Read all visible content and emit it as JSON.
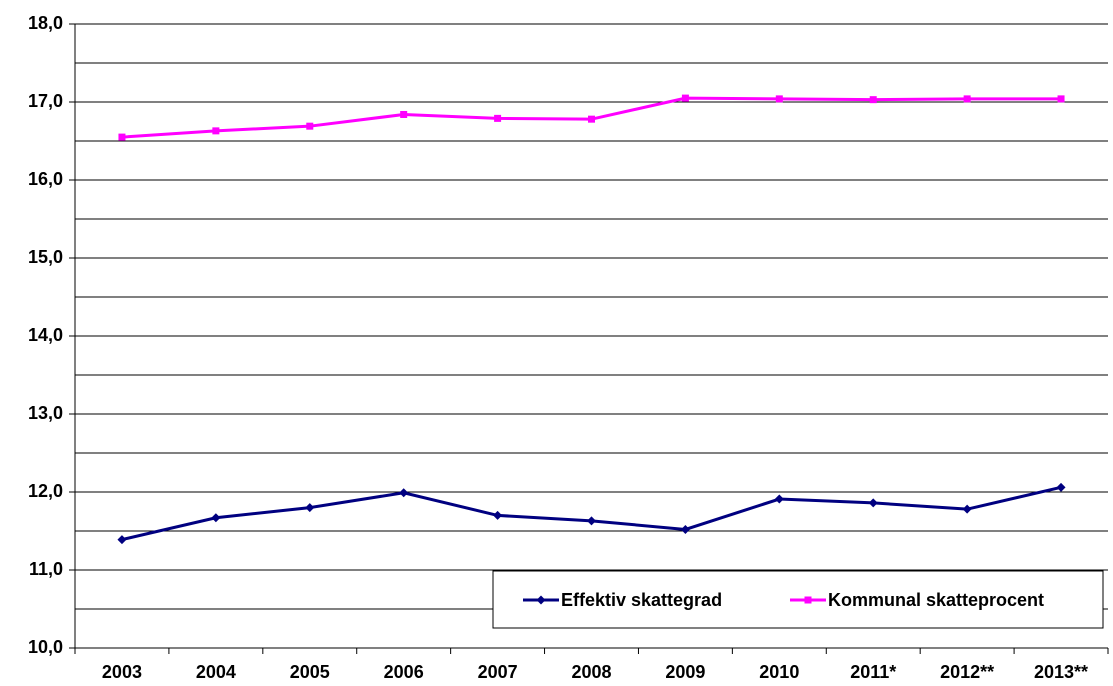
{
  "chart_data": {
    "type": "line",
    "categories": [
      "2003",
      "2004",
      "2005",
      "2006",
      "2007",
      "2008",
      "2009",
      "2010",
      "2011*",
      "2012**",
      "2013**"
    ],
    "series": [
      {
        "name": "Effektiv skattegrad",
        "color": "#000080",
        "marker": "diamond",
        "values": [
          11.39,
          11.67,
          11.8,
          11.99,
          11.7,
          11.63,
          11.52,
          11.91,
          11.86,
          11.78,
          12.06
        ]
      },
      {
        "name": "Kommunal skatteprocent",
        "color": "#ff00ff",
        "marker": "square",
        "values": [
          16.55,
          16.63,
          16.69,
          16.84,
          16.79,
          16.78,
          17.05,
          17.04,
          17.03,
          17.04,
          17.04
        ]
      }
    ],
    "ylim": [
      10,
      18
    ],
    "yticks": [
      {
        "value": 10,
        "label": "10,0"
      },
      {
        "value": 11,
        "label": "11,0"
      },
      {
        "value": 12,
        "label": "12,0"
      },
      {
        "value": 13,
        "label": "13,0"
      },
      {
        "value": 14,
        "label": "14,0"
      },
      {
        "value": 15,
        "label": "15,0"
      },
      {
        "value": 16,
        "label": "16,0"
      },
      {
        "value": 17,
        "label": "17,0"
      },
      {
        "value": 18,
        "label": "18,0"
      }
    ],
    "yminor_grid": [
      10.5,
      11.5,
      12.5,
      13.5,
      14.5,
      15.5,
      16.5,
      17.5
    ],
    "grid": true,
    "legend": "lower right"
  }
}
